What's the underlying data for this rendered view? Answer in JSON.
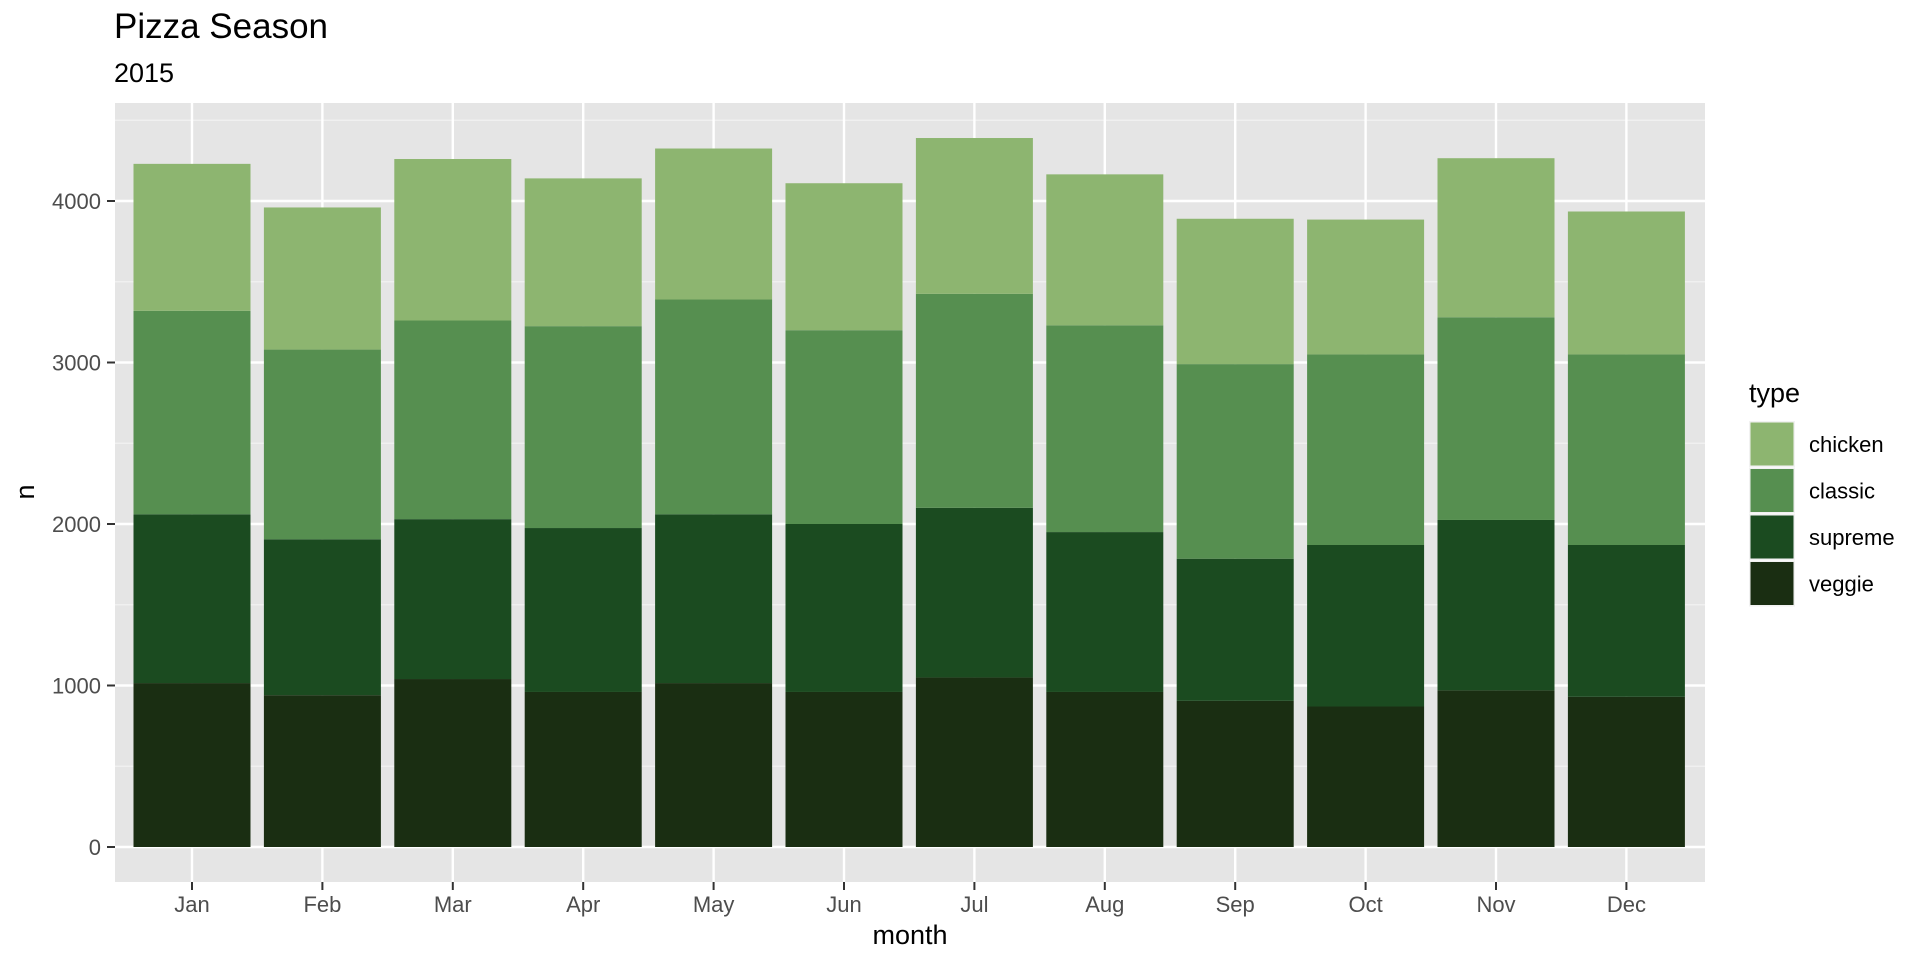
{
  "chart_data": {
    "type": "bar",
    "stacked": true,
    "title": "Pizza Season",
    "subtitle": "2015",
    "xlabel": "month",
    "ylabel": "n",
    "categories": [
      "Jan",
      "Feb",
      "Mar",
      "Apr",
      "May",
      "Jun",
      "Jul",
      "Aug",
      "Sep",
      "Oct",
      "Nov",
      "Dec"
    ],
    "ylim": [
      0,
      4550
    ],
    "yticks": [
      0,
      1000,
      2000,
      3000,
      4000
    ],
    "grid": true,
    "legend": {
      "title": "type",
      "position": "right"
    },
    "series": [
      {
        "name": "veggie",
        "color": "#1a2e12",
        "values": [
          1015,
          940,
          1040,
          960,
          1015,
          960,
          1050,
          960,
          905,
          870,
          970,
          930
        ]
      },
      {
        "name": "supreme",
        "color": "#1b4b20",
        "values": [
          1045,
          965,
          990,
          1015,
          1045,
          1040,
          1050,
          990,
          880,
          1000,
          1055,
          940
        ]
      },
      {
        "name": "classic",
        "color": "#568f50",
        "values": [
          1260,
          1175,
          1230,
          1250,
          1330,
          1200,
          1325,
          1280,
          1205,
          1180,
          1255,
          1180
        ]
      },
      {
        "name": "chicken",
        "color": "#8db570",
        "values": [
          910,
          880,
          1000,
          915,
          935,
          910,
          965,
          935,
          900,
          835,
          985,
          885
        ]
      }
    ],
    "legend_order": [
      "chicken",
      "classic",
      "supreme",
      "veggie"
    ]
  }
}
